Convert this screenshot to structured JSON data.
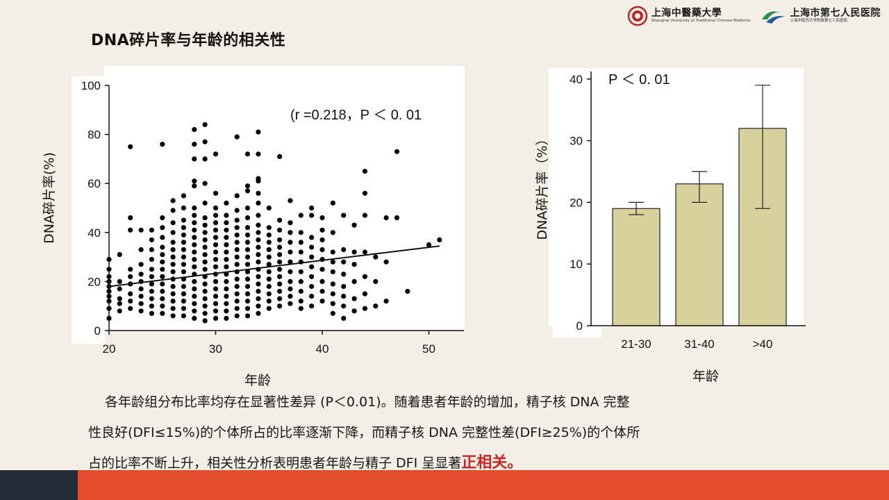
{
  "slide": {
    "title": "DNA碎片率与年龄的相关性",
    "logos": [
      {
        "main": "上海中醫藥大學",
        "sub": "Shanghai University of Traditional Chinese Medicine",
        "icon": "university-seal-icon"
      },
      {
        "main": "上海市第七人民医院",
        "sub": "上海中医药大学附属第七人民医院",
        "icon": "hospital-logo-icon"
      }
    ],
    "paragraph": {
      "line1": "各年龄组分布比率均存在显著性差异 (P＜0.01)。随着患者年龄的增加，精子核 DNA 完整",
      "line2": "性良好(DFI≤15%)的个体所占的比率逐渐下降，而精子核 DNA 完整性差(DFI≥25%)的个体所",
      "line3_normal": "占的比率不断上升，相关性分析表明患者年龄与精子 DFI 呈显著",
      "line3_highlight": "正相关。"
    },
    "colors": {
      "background": "#f3efe6",
      "bar_fill": "#d8d19d",
      "highlight": "#d42020",
      "footer_dark": "#232a38",
      "footer_orange": "#e24b2c"
    }
  },
  "chart_data": [
    {
      "type": "scatter",
      "title": "",
      "xlabel": "年龄",
      "ylabel": "DNA碎片率(%)",
      "xlim": [
        20,
        52
      ],
      "ylim": [
        0,
        100
      ],
      "xticks": [
        "20",
        "30",
        "40",
        "50"
      ],
      "yticks": [
        "0",
        "20",
        "40",
        "60",
        "80",
        "100"
      ],
      "annotation": "(r =0.218，P ＜ 0. 01",
      "regression_line": {
        "x": [
          20,
          51
        ],
        "y": [
          18,
          34.5
        ]
      },
      "points": [
        [
          20,
          5
        ],
        [
          20,
          9
        ],
        [
          20,
          12
        ],
        [
          20,
          14
        ],
        [
          20,
          16
        ],
        [
          20,
          18
        ],
        [
          20,
          20
        ],
        [
          20,
          22
        ],
        [
          20,
          25
        ],
        [
          20,
          29
        ],
        [
          21,
          8
        ],
        [
          21,
          11
        ],
        [
          21,
          13
        ],
        [
          21,
          17
        ],
        [
          21,
          20
        ],
        [
          21,
          31
        ],
        [
          22,
          9
        ],
        [
          22,
          12
        ],
        [
          22,
          15
        ],
        [
          22,
          19
        ],
        [
          22,
          22
        ],
        [
          22,
          25
        ],
        [
          22,
          41
        ],
        [
          22,
          46
        ],
        [
          22,
          75
        ],
        [
          23,
          8
        ],
        [
          23,
          11
        ],
        [
          23,
          14
        ],
        [
          23,
          17
        ],
        [
          23,
          20
        ],
        [
          23,
          23
        ],
        [
          23,
          27
        ],
        [
          23,
          33
        ],
        [
          23,
          41
        ],
        [
          24,
          7
        ],
        [
          24,
          10
        ],
        [
          24,
          13
        ],
        [
          24,
          16
        ],
        [
          24,
          19
        ],
        [
          24,
          22
        ],
        [
          24,
          25
        ],
        [
          24,
          29
        ],
        [
          24,
          33
        ],
        [
          24,
          37
        ],
        [
          24,
          41
        ],
        [
          25,
          7
        ],
        [
          25,
          10
        ],
        [
          25,
          13
        ],
        [
          25,
          16
        ],
        [
          25,
          19
        ],
        [
          25,
          22
        ],
        [
          25,
          25
        ],
        [
          25,
          28
        ],
        [
          25,
          31
        ],
        [
          25,
          34
        ],
        [
          25,
          38
        ],
        [
          25,
          42
        ],
        [
          25,
          46
        ],
        [
          25,
          76
        ],
        [
          26,
          6
        ],
        [
          26,
          9
        ],
        [
          26,
          12
        ],
        [
          26,
          15
        ],
        [
          26,
          18
        ],
        [
          26,
          21
        ],
        [
          26,
          24
        ],
        [
          26,
          27
        ],
        [
          26,
          30
        ],
        [
          26,
          33
        ],
        [
          26,
          36
        ],
        [
          26,
          40
        ],
        [
          26,
          44
        ],
        [
          26,
          49
        ],
        [
          26,
          53
        ],
        [
          27,
          6
        ],
        [
          27,
          9
        ],
        [
          27,
          12
        ],
        [
          27,
          15
        ],
        [
          27,
          18
        ],
        [
          27,
          21
        ],
        [
          27,
          24
        ],
        [
          27,
          27
        ],
        [
          27,
          30
        ],
        [
          27,
          33
        ],
        [
          27,
          36
        ],
        [
          27,
          39
        ],
        [
          27,
          42
        ],
        [
          27,
          45
        ],
        [
          27,
          50
        ],
        [
          27,
          55
        ],
        [
          28,
          5
        ],
        [
          28,
          8
        ],
        [
          28,
          11
        ],
        [
          28,
          14
        ],
        [
          28,
          17
        ],
        [
          28,
          20
        ],
        [
          28,
          23
        ],
        [
          28,
          26
        ],
        [
          28,
          29
        ],
        [
          28,
          32
        ],
        [
          28,
          35
        ],
        [
          28,
          38
        ],
        [
          28,
          41
        ],
        [
          28,
          44
        ],
        [
          28,
          47
        ],
        [
          28,
          50
        ],
        [
          28,
          59
        ],
        [
          28,
          61
        ],
        [
          28,
          70
        ],
        [
          28,
          76
        ],
        [
          28,
          82
        ],
        [
          29,
          4
        ],
        [
          29,
          7
        ],
        [
          29,
          10
        ],
        [
          29,
          13
        ],
        [
          29,
          16
        ],
        [
          29,
          19
        ],
        [
          29,
          22
        ],
        [
          29,
          25
        ],
        [
          29,
          28
        ],
        [
          29,
          31
        ],
        [
          29,
          34
        ],
        [
          29,
          37
        ],
        [
          29,
          40
        ],
        [
          29,
          43
        ],
        [
          29,
          46
        ],
        [
          29,
          52
        ],
        [
          29,
          60
        ],
        [
          29,
          70
        ],
        [
          29,
          77
        ],
        [
          29,
          84
        ],
        [
          30,
          5
        ],
        [
          30,
          8
        ],
        [
          30,
          11
        ],
        [
          30,
          14
        ],
        [
          30,
          17
        ],
        [
          30,
          20
        ],
        [
          30,
          23
        ],
        [
          30,
          26
        ],
        [
          30,
          29
        ],
        [
          30,
          32
        ],
        [
          30,
          35
        ],
        [
          30,
          38
        ],
        [
          30,
          41
        ],
        [
          30,
          44
        ],
        [
          30,
          47
        ],
        [
          30,
          50
        ],
        [
          30,
          56
        ],
        [
          30,
          72
        ],
        [
          31,
          5
        ],
        [
          31,
          8
        ],
        [
          31,
          11
        ],
        [
          31,
          14
        ],
        [
          31,
          17
        ],
        [
          31,
          20
        ],
        [
          31,
          23
        ],
        [
          31,
          26
        ],
        [
          31,
          29
        ],
        [
          31,
          32
        ],
        [
          31,
          35
        ],
        [
          31,
          38
        ],
        [
          31,
          41
        ],
        [
          31,
          44
        ],
        [
          31,
          47
        ],
        [
          31,
          52
        ],
        [
          32,
          6
        ],
        [
          32,
          9
        ],
        [
          32,
          12
        ],
        [
          32,
          15
        ],
        [
          32,
          18
        ],
        [
          32,
          21
        ],
        [
          32,
          24
        ],
        [
          32,
          27
        ],
        [
          32,
          30
        ],
        [
          32,
          33
        ],
        [
          32,
          36
        ],
        [
          32,
          39
        ],
        [
          32,
          42
        ],
        [
          32,
          45
        ],
        [
          32,
          49
        ],
        [
          32,
          55
        ],
        [
          32,
          79
        ],
        [
          33,
          6
        ],
        [
          33,
          9
        ],
        [
          33,
          12
        ],
        [
          33,
          15
        ],
        [
          33,
          18
        ],
        [
          33,
          21
        ],
        [
          33,
          24
        ],
        [
          33,
          27
        ],
        [
          33,
          30
        ],
        [
          33,
          33
        ],
        [
          33,
          36
        ],
        [
          33,
          39
        ],
        [
          33,
          42
        ],
        [
          33,
          46
        ],
        [
          33,
          50
        ],
        [
          33,
          57
        ],
        [
          33,
          59
        ],
        [
          33,
          72
        ],
        [
          34,
          7
        ],
        [
          34,
          10
        ],
        [
          34,
          13
        ],
        [
          34,
          16
        ],
        [
          34,
          19
        ],
        [
          34,
          22
        ],
        [
          34,
          25
        ],
        [
          34,
          28
        ],
        [
          34,
          31
        ],
        [
          34,
          34
        ],
        [
          34,
          37
        ],
        [
          34,
          40
        ],
        [
          34,
          43
        ],
        [
          34,
          47
        ],
        [
          34,
          52
        ],
        [
          34,
          56
        ],
        [
          34,
          61
        ],
        [
          34,
          62
        ],
        [
          34,
          72
        ],
        [
          34,
          81
        ],
        [
          35,
          9
        ],
        [
          35,
          12
        ],
        [
          35,
          15
        ],
        [
          35,
          18
        ],
        [
          35,
          21
        ],
        [
          35,
          24
        ],
        [
          35,
          27
        ],
        [
          35,
          30
        ],
        [
          35,
          33
        ],
        [
          35,
          36
        ],
        [
          35,
          39
        ],
        [
          35,
          42
        ],
        [
          35,
          50
        ],
        [
          36,
          10
        ],
        [
          36,
          13
        ],
        [
          36,
          16
        ],
        [
          36,
          19
        ],
        [
          36,
          22
        ],
        [
          36,
          25
        ],
        [
          36,
          28
        ],
        [
          36,
          31
        ],
        [
          36,
          34
        ],
        [
          36,
          37
        ],
        [
          36,
          41
        ],
        [
          36,
          45
        ],
        [
          36,
          71
        ],
        [
          37,
          11
        ],
        [
          37,
          14
        ],
        [
          37,
          17
        ],
        [
          37,
          20
        ],
        [
          37,
          24
        ],
        [
          37,
          28
        ],
        [
          37,
          32
        ],
        [
          37,
          36
        ],
        [
          37,
          40
        ],
        [
          37,
          44
        ],
        [
          37,
          53
        ],
        [
          38,
          9
        ],
        [
          38,
          12
        ],
        [
          38,
          16
        ],
        [
          38,
          20
        ],
        [
          38,
          24
        ],
        [
          38,
          28
        ],
        [
          38,
          32
        ],
        [
          38,
          36
        ],
        [
          38,
          40
        ],
        [
          38,
          47
        ],
        [
          39,
          10
        ],
        [
          39,
          14
        ],
        [
          39,
          18
        ],
        [
          39,
          22
        ],
        [
          39,
          26
        ],
        [
          39,
          30
        ],
        [
          39,
          34
        ],
        [
          39,
          38
        ],
        [
          39,
          47
        ],
        [
          39,
          50
        ],
        [
          40,
          12
        ],
        [
          40,
          16
        ],
        [
          40,
          20
        ],
        [
          40,
          25
        ],
        [
          40,
          29
        ],
        [
          40,
          33
        ],
        [
          40,
          37
        ],
        [
          40,
          41
        ],
        [
          40,
          46
        ],
        [
          41,
          7
        ],
        [
          41,
          11
        ],
        [
          41,
          15
        ],
        [
          41,
          19
        ],
        [
          41,
          24
        ],
        [
          41,
          28
        ],
        [
          41,
          32
        ],
        [
          41,
          40
        ],
        [
          41,
          52
        ],
        [
          42,
          5
        ],
        [
          42,
          10
        ],
        [
          42,
          14
        ],
        [
          42,
          18
        ],
        [
          42,
          23
        ],
        [
          42,
          28
        ],
        [
          42,
          33
        ],
        [
          42,
          47
        ],
        [
          43,
          8
        ],
        [
          43,
          13
        ],
        [
          43,
          20
        ],
        [
          43,
          27
        ],
        [
          43,
          32
        ],
        [
          43,
          43
        ],
        [
          44,
          9
        ],
        [
          44,
          15
        ],
        [
          44,
          22
        ],
        [
          44,
          32
        ],
        [
          44,
          47
        ],
        [
          44,
          56
        ],
        [
          44,
          65
        ],
        [
          45,
          10
        ],
        [
          45,
          20
        ],
        [
          45,
          30
        ],
        [
          46,
          12
        ],
        [
          46,
          28
        ],
        [
          46,
          46
        ],
        [
          47,
          46
        ],
        [
          47,
          73
        ],
        [
          48,
          16
        ],
        [
          50,
          35
        ],
        [
          51,
          37
        ]
      ]
    },
    {
      "type": "bar",
      "title": "",
      "xlabel": "年龄",
      "ylabel": "DNA碎片率（%）",
      "categories": [
        "21-30",
        "31-40",
        ">40"
      ],
      "values": [
        19,
        23,
        32
      ],
      "error_low": [
        18,
        20,
        19
      ],
      "error_high": [
        20,
        25,
        39
      ],
      "ylim": [
        0,
        40
      ],
      "yticks": [
        "0",
        "10",
        "20",
        "30",
        "40"
      ],
      "annotation": "P ＜ 0. 01"
    }
  ]
}
